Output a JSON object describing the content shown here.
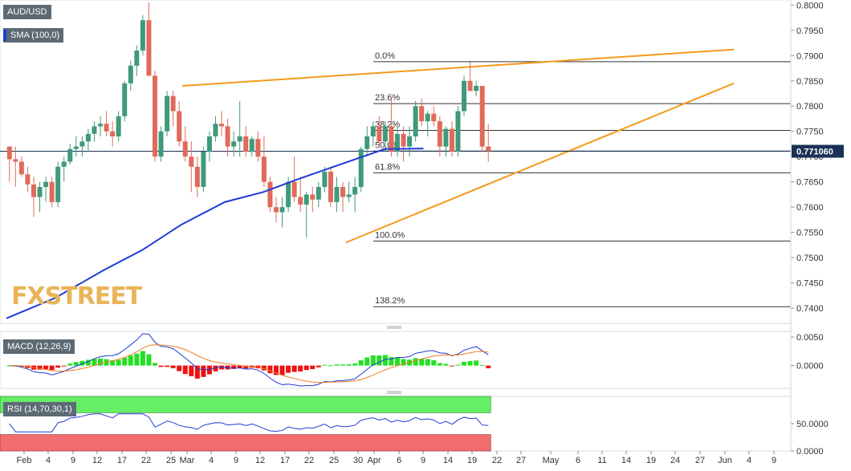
{
  "symbol": "AUD/USD",
  "indicators": {
    "sma": "SMA (100,0)",
    "macd": "MACD (12,26,9)",
    "rsi": "RSI (14,70,30,1)"
  },
  "watermark": {
    "fx": "FX",
    "street": "STREET"
  },
  "current_price": "0.771060",
  "colors": {
    "bull": "#3f9a7a",
    "bear": "#e06a5a",
    "sma": "#1f3bd6",
    "trend": "#f59a1a",
    "macd_line": "#1f3bd6",
    "signal_line": "#f07d20",
    "hist_pos": "#22e022",
    "hist_neg": "#ee1111",
    "rsi_over": "#66ee66",
    "rsi_under": "#f26e6e",
    "price_tag": "#1a3157"
  },
  "chart_data": {
    "type": "candlestick",
    "price_axis": {
      "min": 0.737,
      "max": 0.801,
      "ticks": [
        "0.8000",
        "0.7950",
        "0.7900",
        "0.7850",
        "0.7800",
        "0.7750",
        "0.7700",
        "0.7650",
        "0.7600",
        "0.7550",
        "0.7500",
        "0.7450",
        "0.7400"
      ]
    },
    "x_axis_labels": [
      "Feb",
      "4",
      "9",
      "12",
      "17",
      "22",
      "25",
      "Mar",
      "4",
      "9",
      "12",
      "17",
      "22",
      "25",
      "30",
      "Apr",
      "6",
      "9",
      "14",
      "19",
      "22",
      "27",
      "May",
      "6",
      "11",
      "14",
      "19",
      "24",
      "27",
      "Jun",
      "4",
      "9"
    ],
    "candles": [
      [
        0.772,
        0.772,
        0.765,
        0.7695
      ],
      [
        0.7695,
        0.772,
        0.764,
        0.769
      ],
      [
        0.769,
        0.77,
        0.766,
        0.7665
      ],
      [
        0.7665,
        0.768,
        0.763,
        0.7645
      ],
      [
        0.7645,
        0.766,
        0.758,
        0.762
      ],
      [
        0.762,
        0.765,
        0.759,
        0.764
      ],
      [
        0.764,
        0.766,
        0.761,
        0.765
      ],
      [
        0.765,
        0.766,
        0.76,
        0.761
      ],
      [
        0.761,
        0.769,
        0.76,
        0.768
      ],
      [
        0.768,
        0.77,
        0.765,
        0.769
      ],
      [
        0.769,
        0.7725,
        0.7685,
        0.7715
      ],
      [
        0.7715,
        0.774,
        0.77,
        0.772
      ],
      [
        0.772,
        0.774,
        0.77,
        0.773
      ],
      [
        0.773,
        0.7755,
        0.771,
        0.7745
      ],
      [
        0.7745,
        0.777,
        0.773,
        0.776
      ],
      [
        0.776,
        0.778,
        0.774,
        0.7765
      ],
      [
        0.7765,
        0.779,
        0.774,
        0.775
      ],
      [
        0.775,
        0.777,
        0.772,
        0.774
      ],
      [
        0.774,
        0.779,
        0.773,
        0.778
      ],
      [
        0.778,
        0.785,
        0.777,
        0.7845
      ],
      [
        0.7845,
        0.789,
        0.783,
        0.788
      ],
      [
        0.788,
        0.792,
        0.786,
        0.791
      ],
      [
        0.791,
        0.798,
        0.79,
        0.797
      ],
      [
        0.797,
        0.8005,
        0.786,
        0.786
      ],
      [
        0.786,
        0.787,
        0.769,
        0.77
      ],
      [
        0.77,
        0.776,
        0.769,
        0.775
      ],
      [
        0.775,
        0.783,
        0.774,
        0.782
      ],
      [
        0.782,
        0.783,
        0.776,
        0.779
      ],
      [
        0.779,
        0.781,
        0.772,
        0.773
      ],
      [
        0.773,
        0.776,
        0.769,
        0.77
      ],
      [
        0.77,
        0.773,
        0.763,
        0.768
      ],
      [
        0.768,
        0.77,
        0.762,
        0.764
      ],
      [
        0.764,
        0.772,
        0.763,
        0.771
      ],
      [
        0.771,
        0.775,
        0.769,
        0.774
      ],
      [
        0.774,
        0.778,
        0.773,
        0.7765
      ],
      [
        0.7765,
        0.779,
        0.774,
        0.776
      ],
      [
        0.776,
        0.7775,
        0.77,
        0.772
      ],
      [
        0.772,
        0.775,
        0.77,
        0.773
      ],
      [
        0.773,
        0.781,
        0.77,
        0.774
      ],
      [
        0.774,
        0.776,
        0.77,
        0.771
      ],
      [
        0.771,
        0.774,
        0.77,
        0.7735
      ],
      [
        0.7735,
        0.775,
        0.769,
        0.77
      ],
      [
        0.77,
        0.774,
        0.764,
        0.765
      ],
      [
        0.765,
        0.766,
        0.759,
        0.76
      ],
      [
        0.76,
        0.762,
        0.757,
        0.759
      ],
      [
        0.759,
        0.762,
        0.756,
        0.76
      ],
      [
        0.76,
        0.766,
        0.759,
        0.765
      ],
      [
        0.765,
        0.77,
        0.761,
        0.762
      ],
      [
        0.762,
        0.766,
        0.759,
        0.7605
      ],
      [
        0.7605,
        0.763,
        0.754,
        0.7625
      ],
      [
        0.7625,
        0.764,
        0.759,
        0.7615
      ],
      [
        0.7615,
        0.765,
        0.76,
        0.764
      ],
      [
        0.764,
        0.768,
        0.763,
        0.767
      ],
      [
        0.767,
        0.768,
        0.76,
        0.761
      ],
      [
        0.761,
        0.766,
        0.759,
        0.764
      ],
      [
        0.764,
        0.765,
        0.759,
        0.762
      ],
      [
        0.762,
        0.765,
        0.761,
        0.7625
      ],
      [
        0.7625,
        0.766,
        0.759,
        0.764
      ],
      [
        0.764,
        0.772,
        0.763,
        0.7715
      ],
      [
        0.7715,
        0.776,
        0.77,
        0.774
      ],
      [
        0.774,
        0.777,
        0.772,
        0.776
      ],
      [
        0.776,
        0.778,
        0.772,
        0.773
      ],
      [
        0.773,
        0.777,
        0.771,
        0.776
      ],
      [
        0.776,
        0.7815,
        0.77,
        0.771
      ],
      [
        0.771,
        0.776,
        0.77,
        0.7745
      ],
      [
        0.7745,
        0.776,
        0.769,
        0.772
      ],
      [
        0.772,
        0.776,
        0.77,
        0.774
      ],
      [
        0.774,
        0.781,
        0.773,
        0.78
      ],
      [
        0.78,
        0.7815,
        0.776,
        0.777
      ],
      [
        0.777,
        0.779,
        0.774,
        0.7785
      ],
      [
        0.7785,
        0.78,
        0.776,
        0.777
      ],
      [
        0.777,
        0.778,
        0.77,
        0.772
      ],
      [
        0.772,
        0.776,
        0.77,
        0.7755
      ],
      [
        0.7755,
        0.777,
        0.77,
        0.771
      ],
      [
        0.771,
        0.78,
        0.77,
        0.779
      ],
      [
        0.779,
        0.786,
        0.778,
        0.785
      ],
      [
        0.785,
        0.789,
        0.783,
        0.783
      ],
      [
        0.783,
        0.785,
        0.782,
        0.784
      ],
      [
        0.784,
        0.784,
        0.771,
        0.772
      ],
      [
        0.772,
        0.7765,
        0.769,
        0.7711
      ]
    ],
    "sma_100": [
      [
        0,
        0.738
      ],
      [
        0.1,
        0.742
      ],
      [
        0.2,
        0.7475
      ],
      [
        0.28,
        0.7515
      ],
      [
        0.36,
        0.7565
      ],
      [
        0.45,
        0.761
      ],
      [
        0.53,
        0.763
      ],
      [
        0.6,
        0.7655
      ],
      [
        0.66,
        0.7675
      ],
      [
        0.72,
        0.7695
      ],
      [
        0.78,
        0.7715
      ],
      [
        0.86,
        0.7716
      ]
    ],
    "trendlines": [
      {
        "from": [
          0.784,
          29
        ],
        "to": [
          0.7912,
          120
        ]
      },
      {
        "from": [
          0.753,
          56
        ],
        "to": [
          0.7845,
          120
        ]
      }
    ],
    "fibonacci": [
      {
        "label": "0.0%",
        "price": 0.7888
      },
      {
        "label": "23.6%",
        "price": 0.7805
      },
      {
        "label": "38.2%",
        "price": 0.7752
      },
      {
        "label": "50.0%",
        "price": 0.7711
      },
      {
        "label": "61.8%",
        "price": 0.7668
      },
      {
        "label": "100.0%",
        "price": 0.7533
      },
      {
        "label": "138.2%",
        "price": 0.7403
      }
    ],
    "macd_axis": {
      "min": -0.004,
      "max": 0.006,
      "ticks": [
        "0.0050",
        "0.0000"
      ]
    },
    "rsi_axis": {
      "min": 0,
      "max": 100,
      "ticks": [
        "50.0000",
        "0.0000"
      ],
      "overbought": 70,
      "oversold": 30
    }
  }
}
